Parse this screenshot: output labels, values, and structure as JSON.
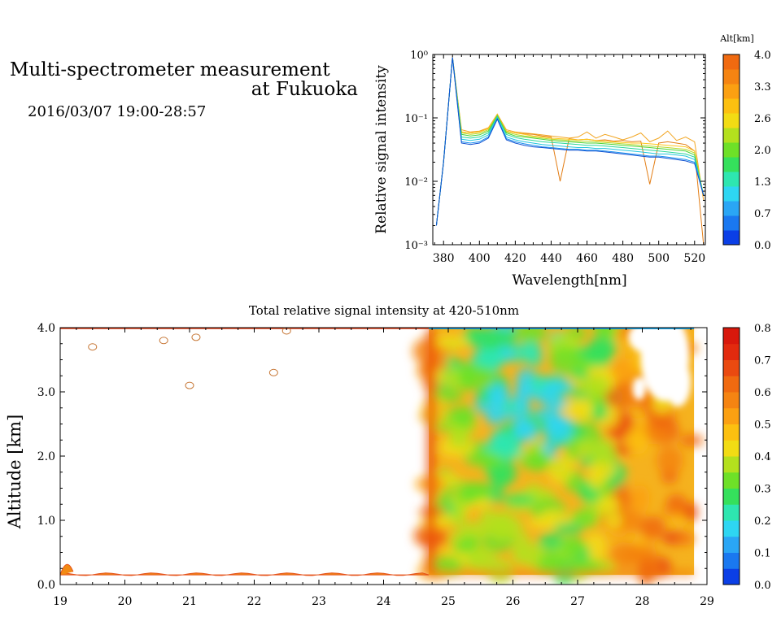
{
  "header": {
    "title_line1": "Multi-spectrometer measurement",
    "title_line2": "at Fukuoka",
    "time_range": "2016/03/07 19:00-28:57"
  },
  "chart_data": [
    {
      "type": "line",
      "xlabel": "Wavelength[nm]",
      "ylabel": "Relative signal intensity",
      "xlim": [
        374,
        526
      ],
      "ylim": [
        0.001,
        1
      ],
      "yscale": "log",
      "xticks": [
        380,
        400,
        420,
        440,
        460,
        480,
        500,
        520
      ],
      "yticks": [
        {
          "value": 0.001,
          "label": "10⁻³"
        },
        {
          "value": 0.01,
          "label": "10⁻²"
        },
        {
          "value": 0.1,
          "label": "10⁻¹"
        },
        {
          "value": 1,
          "label": "10⁰"
        }
      ],
      "x": [
        376,
        380,
        385,
        390,
        395,
        400,
        405,
        410,
        415,
        420,
        425,
        430,
        435,
        440,
        445,
        450,
        455,
        460,
        465,
        470,
        475,
        480,
        485,
        490,
        495,
        500,
        505,
        510,
        515,
        520,
        525
      ],
      "series": [
        {
          "color": "#e37e16",
          "values": [
            0.002,
            0.02,
            0.92,
            0.06,
            0.058,
            0.06,
            0.068,
            0.11,
            0.062,
            0.058,
            0.056,
            0.055,
            0.052,
            0.05,
            0.01,
            0.047,
            0.045,
            0.046,
            0.044,
            0.045,
            0.043,
            0.044,
            0.042,
            0.043,
            0.009,
            0.04,
            0.042,
            0.04,
            0.038,
            0.03,
            0.001
          ]
        },
        {
          "color": "#f2a623",
          "values": [
            0.002,
            0.02,
            0.9,
            0.065,
            0.06,
            0.062,
            0.07,
            0.115,
            0.065,
            0.06,
            0.058,
            0.056,
            0.054,
            0.052,
            0.05,
            0.048,
            0.05,
            0.06,
            0.048,
            0.055,
            0.05,
            0.045,
            0.05,
            0.058,
            0.042,
            0.048,
            0.062,
            0.044,
            0.05,
            0.042,
            0.005
          ]
        },
        {
          "color": "#ffc61a",
          "values": [
            0.002,
            0.02,
            0.9,
            0.06,
            0.058,
            0.06,
            0.068,
            0.112,
            0.062,
            0.058,
            0.055,
            0.052,
            0.05,
            0.048,
            0.047,
            0.046,
            0.045,
            0.046,
            0.044,
            0.043,
            0.042,
            0.041,
            0.04,
            0.04,
            0.039,
            0.038,
            0.037,
            0.036,
            0.035,
            0.03,
            0.006
          ]
        },
        {
          "color": "#b8d92a",
          "values": [
            0.002,
            0.02,
            0.9,
            0.058,
            0.055,
            0.057,
            0.065,
            0.11,
            0.06,
            0.055,
            0.052,
            0.05,
            0.048,
            0.046,
            0.045,
            0.044,
            0.043,
            0.043,
            0.042,
            0.041,
            0.04,
            0.039,
            0.038,
            0.037,
            0.036,
            0.035,
            0.034,
            0.033,
            0.032,
            0.028,
            0.006
          ]
        },
        {
          "color": "#4cd435",
          "values": [
            0.002,
            0.02,
            0.9,
            0.055,
            0.052,
            0.054,
            0.062,
            0.108,
            0.058,
            0.052,
            0.05,
            0.048,
            0.046,
            0.044,
            0.043,
            0.042,
            0.041,
            0.04,
            0.04,
            0.039,
            0.038,
            0.037,
            0.036,
            0.035,
            0.034,
            0.033,
            0.032,
            0.031,
            0.03,
            0.026,
            0.006
          ]
        },
        {
          "color": "#2bd79a",
          "values": [
            0.002,
            0.02,
            0.9,
            0.05,
            0.048,
            0.05,
            0.058,
            0.105,
            0.055,
            0.049,
            0.046,
            0.044,
            0.042,
            0.041,
            0.04,
            0.039,
            0.038,
            0.037,
            0.037,
            0.036,
            0.035,
            0.034,
            0.033,
            0.032,
            0.031,
            0.03,
            0.029,
            0.028,
            0.027,
            0.024,
            0.006
          ]
        },
        {
          "color": "#22c6dd",
          "values": [
            0.002,
            0.02,
            0.9,
            0.046,
            0.044,
            0.046,
            0.054,
            0.1,
            0.05,
            0.045,
            0.042,
            0.04,
            0.038,
            0.037,
            0.036,
            0.035,
            0.034,
            0.034,
            0.033,
            0.033,
            0.032,
            0.031,
            0.03,
            0.029,
            0.028,
            0.027,
            0.027,
            0.026,
            0.025,
            0.022,
            0.006
          ]
        },
        {
          "color": "#178ef0",
          "values": [
            0.002,
            0.02,
            0.9,
            0.042,
            0.04,
            0.042,
            0.05,
            0.098,
            0.047,
            0.042,
            0.039,
            0.037,
            0.035,
            0.034,
            0.033,
            0.032,
            0.032,
            0.031,
            0.031,
            0.03,
            0.029,
            0.028,
            0.027,
            0.026,
            0.025,
            0.025,
            0.024,
            0.023,
            0.022,
            0.02,
            0.006
          ]
        },
        {
          "color": "#1050d0",
          "values": [
            0.002,
            0.02,
            0.9,
            0.04,
            0.038,
            0.04,
            0.048,
            0.095,
            0.045,
            0.04,
            0.037,
            0.035,
            0.034,
            0.033,
            0.032,
            0.031,
            0.031,
            0.03,
            0.03,
            0.029,
            0.028,
            0.027,
            0.026,
            0.025,
            0.024,
            0.024,
            0.023,
            0.022,
            0.021,
            0.019,
            0.006
          ]
        }
      ],
      "colorbar": {
        "title": "Alt[km]",
        "tick_labels": [
          "0.0",
          "0.7",
          "1.3",
          "2.0",
          "2.6",
          "3.3",
          "4.0"
        ],
        "colors": [
          "#0b3fe6",
          "#1a78f0",
          "#2aa6f5",
          "#2ed6f2",
          "#2ee6b0",
          "#35e05c",
          "#6ee028",
          "#b4e01e",
          "#f2dc14",
          "#fcc010",
          "#fba012",
          "#f58412",
          "#f06a10"
        ]
      }
    },
    {
      "type": "heatmap",
      "title": "Total relative signal intensity at 420-510nm",
      "ylabel": "Altitude [km]",
      "xlim": [
        19,
        29
      ],
      "ylim": [
        0,
        4
      ],
      "xticks": [
        19,
        20,
        21,
        22,
        23,
        24,
        25,
        26,
        27,
        28,
        29
      ],
      "yticks": [
        0,
        1,
        2,
        3,
        4
      ],
      "ytick_labels": [
        "0.0",
        "1.0",
        "2.0",
        "3.0",
        "4.0"
      ],
      "data_start_hour": 24.7,
      "data_end_hour": 28.8,
      "data_min_altitude_km": 0.15,
      "colorbar": {
        "tick_labels": [
          "0.0",
          "0.1",
          "0.2",
          "0.3",
          "0.4",
          "0.5",
          "0.6",
          "0.7",
          "0.8"
        ],
        "colors": [
          "#0b3fe6",
          "#1a78f0",
          "#2aa6f5",
          "#2ed6f2",
          "#2ee6b0",
          "#35e05c",
          "#6ee028",
          "#b4e01e",
          "#f2dc14",
          "#fcc010",
          "#fba012",
          "#f58412",
          "#f06a10",
          "#ea4a10",
          "#e22a0e",
          "#d8180c"
        ]
      }
    }
  ]
}
